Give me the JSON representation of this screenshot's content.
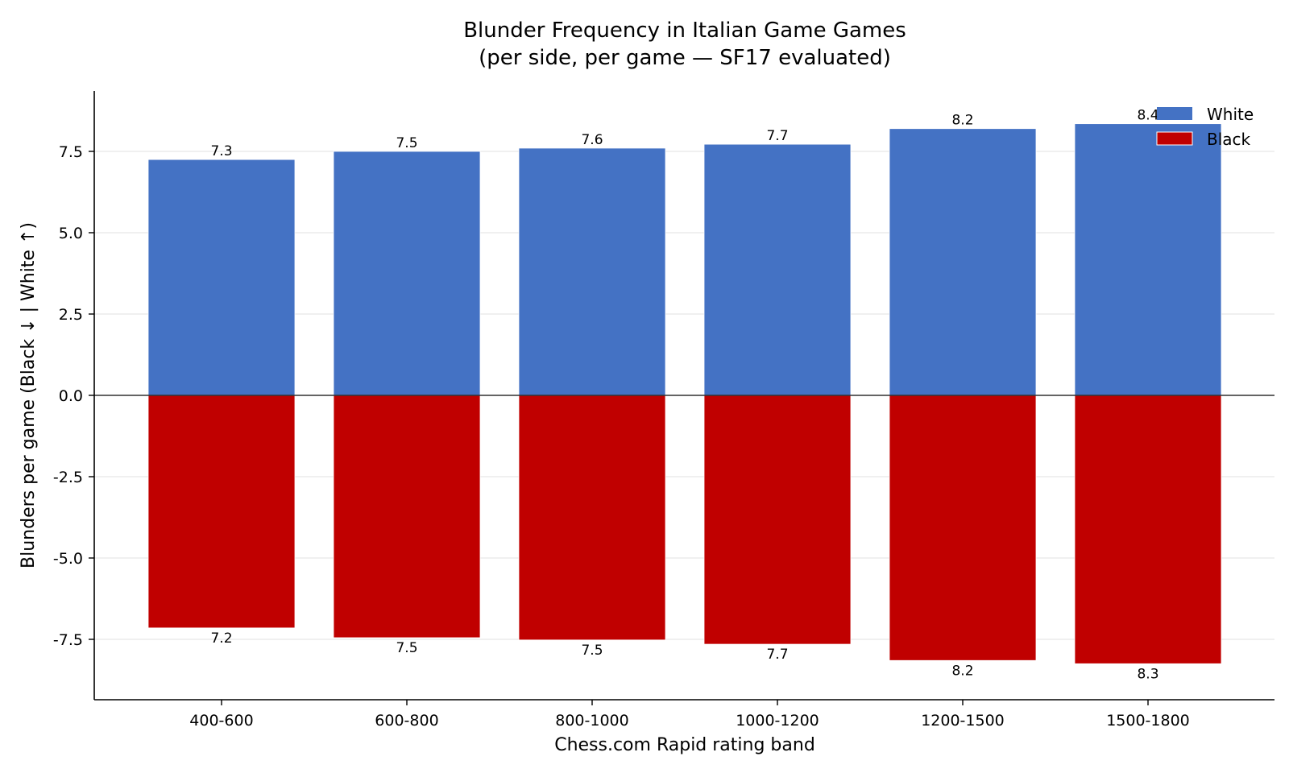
{
  "chart_data": {
    "type": "bar",
    "title": "Blunder Frequency in Italian Game Games",
    "subtitle": "(per side, per game — SF17 evaluated)",
    "xlabel": "Chess.com Rapid rating band",
    "ylabel": "Blunders per game   (Black ↓  |  White ↑)",
    "categories": [
      "400-600",
      "600-800",
      "800-1000",
      "1000-1200",
      "1200-1500",
      "1500-1800"
    ],
    "series": [
      {
        "name": "White",
        "color": "#4472c4",
        "values": [
          7.25,
          7.5,
          7.6,
          7.72,
          8.2,
          8.35
        ],
        "labels": [
          "7.3",
          "7.5",
          "7.6",
          "7.7",
          "8.2",
          "8.4"
        ]
      },
      {
        "name": "Black",
        "color": "#c00000",
        "values": [
          -7.15,
          -7.45,
          -7.52,
          -7.65,
          -8.15,
          -8.25
        ],
        "labels": [
          "7.2",
          "7.5",
          "7.5",
          "7.7",
          "8.2",
          "8.3"
        ]
      }
    ],
    "yticks": [
      -7.5,
      -5.0,
      -2.5,
      0.0,
      2.5,
      5.0,
      7.5
    ],
    "ytick_labels": [
      "-7.5",
      "-5.0",
      "-2.5",
      "0.0",
      "2.5",
      "5.0",
      "7.5"
    ],
    "ylim": [
      -9.4,
      9.4
    ],
    "grid": "horizontal",
    "legend": "top-right"
  }
}
